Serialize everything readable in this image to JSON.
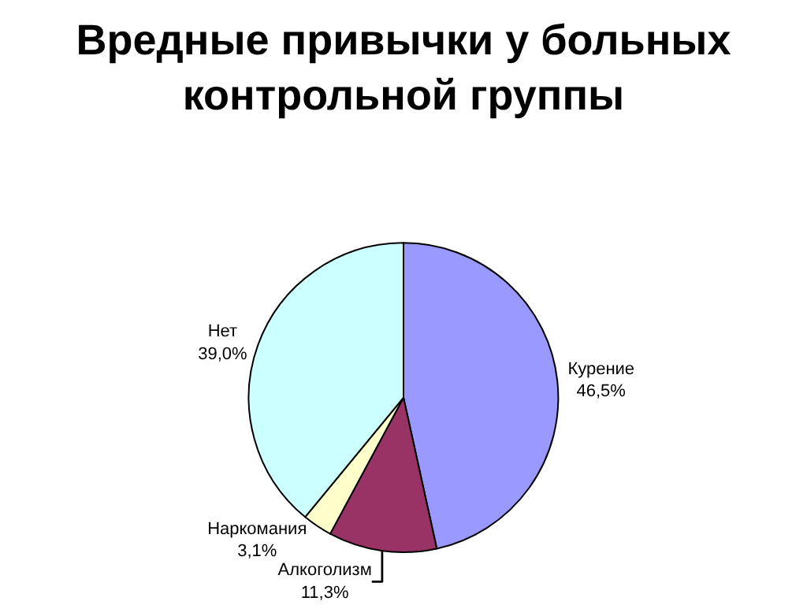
{
  "chart_data": {
    "type": "pie",
    "title": "Вредные привычки у больных контрольной группы",
    "categories": [
      "Курение",
      "Алкоголизм",
      "Наркомания",
      "Нет"
    ],
    "values": [
      46.5,
      11.3,
      3.1,
      39.0
    ],
    "value_labels": [
      "46,5%",
      "11,3%",
      "3,1%",
      "39,0%"
    ],
    "colors": [
      "#9999ff",
      "#993366",
      "#ffffcc",
      "#ccffff"
    ],
    "legend": false
  }
}
